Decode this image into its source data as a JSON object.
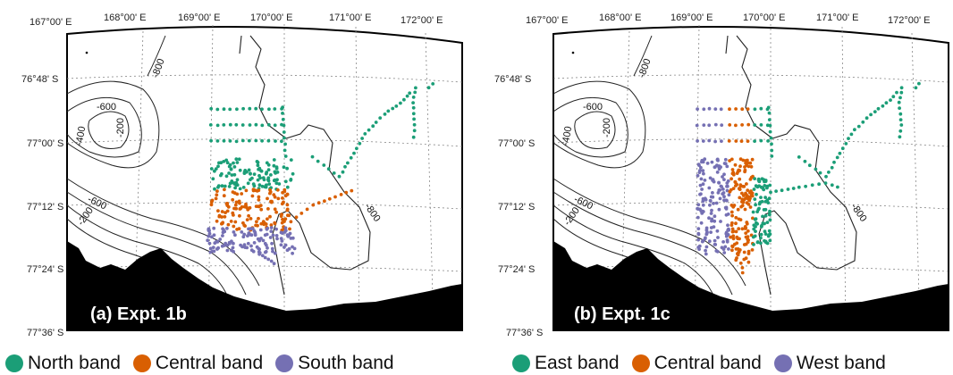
{
  "colors": {
    "north": "#1b9e77",
    "east": "#1b9e77",
    "central": "#d95f02",
    "south": "#7570b3",
    "west": "#7570b3",
    "land": "#000000"
  },
  "lon_labels": [
    "167°00' E",
    "168°00' E",
    "169°00' E",
    "170°00' E",
    "171°00' E",
    "172°00' E"
  ],
  "lat_labels": [
    "76°48' S",
    "77°00' S",
    "77°12' S",
    "77°24' S",
    "77°36' S"
  ],
  "panels": [
    {
      "id": "a",
      "label": "(a) Expt. 1b",
      "contours": {
        "c1": "-600",
        "c2": "-400",
        "c3": "-200",
        "c4": "-800",
        "c5": "-600",
        "c6": "-200",
        "c7": "-800"
      },
      "legend": [
        {
          "name": "North band",
          "color_key": "north"
        },
        {
          "name": "Central band",
          "color_key": "central"
        },
        {
          "name": "South band",
          "color_key": "south"
        }
      ]
    },
    {
      "id": "b",
      "label": "(b) Expt. 1c",
      "contours": {
        "c1": "-600",
        "c2": "-400",
        "c3": "-200",
        "c4": "-800",
        "c5": "-600",
        "c6": "-200",
        "c7": "-800"
      },
      "legend": [
        {
          "name": "East band",
          "color_key": "east"
        },
        {
          "name": "Central band",
          "color_key": "central"
        },
        {
          "name": "West band",
          "color_key": "west"
        }
      ]
    }
  ]
}
